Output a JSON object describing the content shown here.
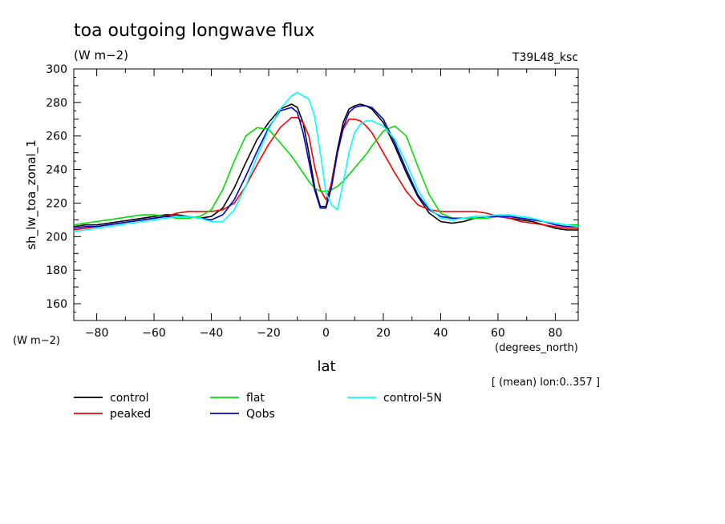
{
  "chart_data": {
    "type": "line",
    "title": "toa outgoing longwave flux",
    "subtitle": "(W m−2)",
    "experiment": "T39L48_ksc",
    "xlabel": "lat",
    "x_units": "(degrees_north)",
    "ylabel": "sh_lw_toa_zonal_1",
    "y_units": "(W m−2)",
    "footnote": "[ (mean) lon:0..357 ]",
    "xlim": [
      -88,
      88
    ],
    "ylim": [
      150,
      300
    ],
    "xticks": [
      -80,
      -60,
      -40,
      -20,
      0,
      20,
      40,
      60,
      80
    ],
    "yticks": [
      160,
      180,
      200,
      220,
      240,
      260,
      280,
      300
    ],
    "grid": false,
    "legend_position": "bottom",
    "x": [
      -88,
      -84,
      -80,
      -76,
      -72,
      -68,
      -64,
      -60,
      -56,
      -52,
      -48,
      -44,
      -40,
      -36,
      -32,
      -28,
      -24,
      -20,
      -16,
      -12,
      -10,
      -8,
      -6,
      -4,
      -2,
      0,
      2,
      4,
      6,
      8,
      10,
      12,
      14,
      16,
      20,
      24,
      28,
      32,
      36,
      40,
      44,
      48,
      52,
      56,
      60,
      64,
      68,
      72,
      76,
      80,
      84,
      88
    ],
    "series": [
      {
        "name": "control",
        "color": "#000000",
        "values": [
          206,
          207,
          207,
          208,
          209,
          210,
          211,
          212,
          213,
          213,
          212,
          211,
          212,
          217,
          229,
          244,
          258,
          268,
          276,
          279,
          277,
          268,
          250,
          230,
          218,
          218,
          233,
          252,
          268,
          276,
          278,
          279,
          278,
          276,
          268,
          254,
          238,
          224,
          214,
          209,
          208,
          209,
          211,
          212,
          212,
          211,
          210,
          209,
          207,
          205,
          204,
          204
        ]
      },
      {
        "name": "peaked",
        "color": "#ff0000",
        "values": [
          204,
          205,
          206,
          207,
          208,
          209,
          210,
          211,
          212,
          214,
          215,
          215,
          215,
          216,
          220,
          230,
          243,
          255,
          265,
          271,
          271,
          268,
          260,
          242,
          228,
          222,
          232,
          250,
          264,
          270,
          270,
          269,
          266,
          262,
          250,
          238,
          227,
          219,
          216,
          215,
          215,
          215,
          215,
          214,
          212,
          211,
          209,
          208,
          207,
          206,
          205,
          205
        ]
      },
      {
        "name": "flat",
        "color": "#00dd00",
        "values": [
          207,
          208,
          209,
          210,
          211,
          212,
          213,
          213,
          212,
          211,
          211,
          212,
          216,
          228,
          245,
          260,
          265,
          264,
          256,
          248,
          243,
          238,
          233,
          229,
          227,
          227,
          228,
          230,
          233,
          237,
          241,
          245,
          249,
          254,
          263,
          266,
          260,
          242,
          225,
          214,
          211,
          211,
          211,
          211,
          212,
          212,
          211,
          210,
          209,
          208,
          207,
          207
        ]
      },
      {
        "name": "Qobs",
        "color": "#0000cc",
        "values": [
          205,
          206,
          206,
          207,
          208,
          209,
          210,
          211,
          212,
          212,
          212,
          211,
          210,
          213,
          222,
          236,
          251,
          265,
          275,
          277,
          274,
          262,
          245,
          228,
          217,
          217,
          230,
          250,
          265,
          274,
          277,
          278,
          278,
          277,
          270,
          256,
          240,
          225,
          216,
          212,
          211,
          211,
          212,
          212,
          212,
          212,
          211,
          210,
          209,
          207,
          206,
          206
        ]
      },
      {
        "name": "control-5N",
        "color": "#00ffff",
        "values": [
          203,
          204,
          205,
          206,
          207,
          208,
          209,
          210,
          211,
          212,
          212,
          211,
          209,
          209,
          216,
          230,
          248,
          264,
          276,
          284,
          286,
          284,
          282,
          272,
          250,
          226,
          219,
          216,
          232,
          250,
          262,
          267,
          269,
          269,
          266,
          258,
          244,
          228,
          217,
          211,
          210,
          211,
          212,
          212,
          213,
          213,
          212,
          211,
          209,
          208,
          207,
          206
        ]
      }
    ]
  }
}
